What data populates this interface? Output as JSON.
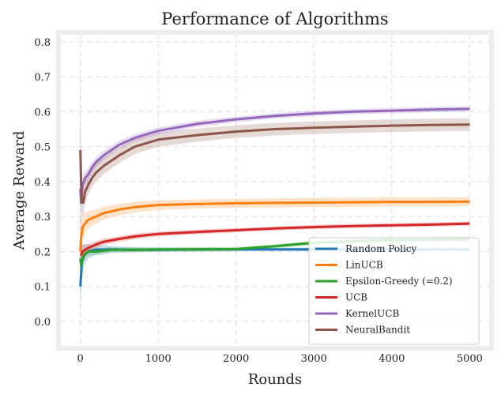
{
  "chart_data": {
    "type": "line",
    "title": "Performance of Algorithms",
    "xlabel": "Rounds",
    "ylabel": "Average Reward",
    "xlim": [
      -250,
      5250
    ],
    "ylim": [
      -0.07,
      0.82
    ],
    "xticks": [
      0,
      1000,
      2000,
      3000,
      4000,
      5000
    ],
    "yticks": [
      0.0,
      0.1,
      0.2,
      0.3,
      0.4,
      0.5,
      0.6,
      0.7,
      0.8
    ],
    "grid": true,
    "legend_position": "lower-right",
    "series": [
      {
        "name": "Random Policy",
        "color": "#1f77b4",
        "x": [
          1,
          20,
          50,
          100,
          200,
          400,
          600,
          1000,
          1500,
          2000,
          2500,
          3000,
          3500,
          4000,
          4500,
          5000
        ],
        "y": [
          0.1,
          0.17,
          0.19,
          0.2,
          0.205,
          0.206,
          0.205,
          0.205,
          0.206,
          0.206,
          0.206,
          0.206,
          0.206,
          0.206,
          0.206,
          0.206
        ],
        "band": [
          0.08,
          0.05,
          0.03,
          0.02,
          0.015,
          0.01,
          0.008,
          0.006,
          0.006,
          0.005,
          0.005,
          0.005,
          0.005,
          0.005,
          0.005,
          0.005
        ]
      },
      {
        "name": "LinUCB",
        "color": "#ff7f0e",
        "x": [
          1,
          10,
          30,
          60,
          100,
          200,
          300,
          500,
          700,
          1000,
          1500,
          2000,
          2500,
          3000,
          3500,
          4000,
          4500,
          5000
        ],
        "y": [
          0.2,
          0.24,
          0.27,
          0.28,
          0.29,
          0.3,
          0.31,
          0.32,
          0.327,
          0.333,
          0.336,
          0.338,
          0.339,
          0.34,
          0.341,
          0.342,
          0.342,
          0.343
        ],
        "band": [
          0.1,
          0.05,
          0.035,
          0.03,
          0.025,
          0.02,
          0.018,
          0.016,
          0.015,
          0.014,
          0.013,
          0.013,
          0.013,
          0.013,
          0.013,
          0.013,
          0.013,
          0.013
        ]
      },
      {
        "name": "Epsilon-Greedy (=0.2)",
        "color": "#2ca02c",
        "x": [
          1,
          10,
          30,
          50,
          100,
          200,
          400,
          700,
          1000,
          1500,
          2000,
          2500,
          3000,
          3500,
          4000,
          4500,
          5000
        ],
        "y": [
          0.18,
          0.16,
          0.18,
          0.19,
          0.2,
          0.2,
          0.205,
          0.205,
          0.206,
          0.206,
          0.207,
          0.215,
          0.225,
          0.23,
          0.233,
          0.234,
          0.235
        ],
        "band": [
          0.04,
          0.03,
          0.02,
          0.015,
          0.012,
          0.01,
          0.008,
          0.007,
          0.006,
          0.006,
          0.006,
          0.006,
          0.006,
          0.006,
          0.006,
          0.006,
          0.006
        ]
      },
      {
        "name": "UCB",
        "color": "#d62728",
        "x": [
          1,
          10,
          30,
          60,
          100,
          200,
          300,
          500,
          700,
          1000,
          1500,
          2000,
          2500,
          3000,
          3500,
          4000,
          4500,
          5000
        ],
        "y": [
          0.19,
          0.19,
          0.2,
          0.205,
          0.21,
          0.22,
          0.228,
          0.236,
          0.243,
          0.25,
          0.256,
          0.261,
          0.266,
          0.27,
          0.273,
          0.275,
          0.277,
          0.28
        ],
        "band": [
          0.04,
          0.03,
          0.02,
          0.015,
          0.012,
          0.01,
          0.009,
          0.008,
          0.008,
          0.007,
          0.007,
          0.006,
          0.006,
          0.006,
          0.006,
          0.006,
          0.006,
          0.006
        ]
      },
      {
        "name": "KernelUCB",
        "color": "#9467bd",
        "x": [
          1,
          10,
          30,
          60,
          100,
          150,
          200,
          300,
          400,
          500,
          700,
          1000,
          1500,
          2000,
          2500,
          3000,
          3500,
          4000,
          4500,
          5000
        ],
        "y": [
          0.38,
          0.34,
          0.39,
          0.41,
          0.42,
          0.44,
          0.455,
          0.475,
          0.49,
          0.505,
          0.525,
          0.545,
          0.565,
          0.578,
          0.588,
          0.595,
          0.6,
          0.603,
          0.606,
          0.608
        ],
        "band": [
          0.25,
          0.03,
          0.025,
          0.02,
          0.018,
          0.016,
          0.015,
          0.014,
          0.013,
          0.012,
          0.011,
          0.01,
          0.009,
          0.008,
          0.008,
          0.008,
          0.008,
          0.008,
          0.008,
          0.008
        ]
      },
      {
        "name": "NeuralBandit",
        "color": "#8c564b",
        "x": [
          1,
          10,
          20,
          40,
          60,
          100,
          150,
          200,
          300,
          400,
          500,
          700,
          1000,
          1500,
          2000,
          2500,
          3000,
          3500,
          4000,
          4500,
          5000
        ],
        "y": [
          0.49,
          0.4,
          0.34,
          0.34,
          0.37,
          0.39,
          0.41,
          0.425,
          0.445,
          0.46,
          0.475,
          0.5,
          0.52,
          0.533,
          0.543,
          0.55,
          0.554,
          0.557,
          0.56,
          0.562,
          0.563
        ],
        "band": [
          0.3,
          0.05,
          0.04,
          0.035,
          0.03,
          0.028,
          0.026,
          0.025,
          0.024,
          0.023,
          0.022,
          0.021,
          0.02,
          0.019,
          0.018,
          0.018,
          0.018,
          0.018,
          0.018,
          0.018,
          0.018
        ]
      }
    ]
  }
}
